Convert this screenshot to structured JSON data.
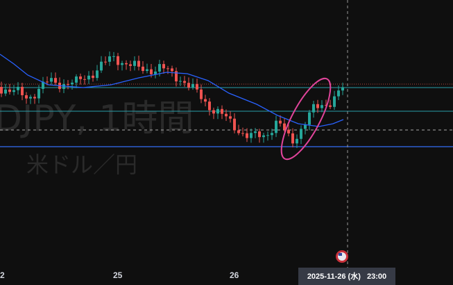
{
  "watermark": {
    "symbol": "DJPY, 1時間",
    "description": "米ドル／円"
  },
  "time_axis": {
    "labels": [
      "2",
      "25",
      "26"
    ]
  },
  "crosshair": {
    "time_label": "2025-11-26 (水)   23:00"
  }
}
